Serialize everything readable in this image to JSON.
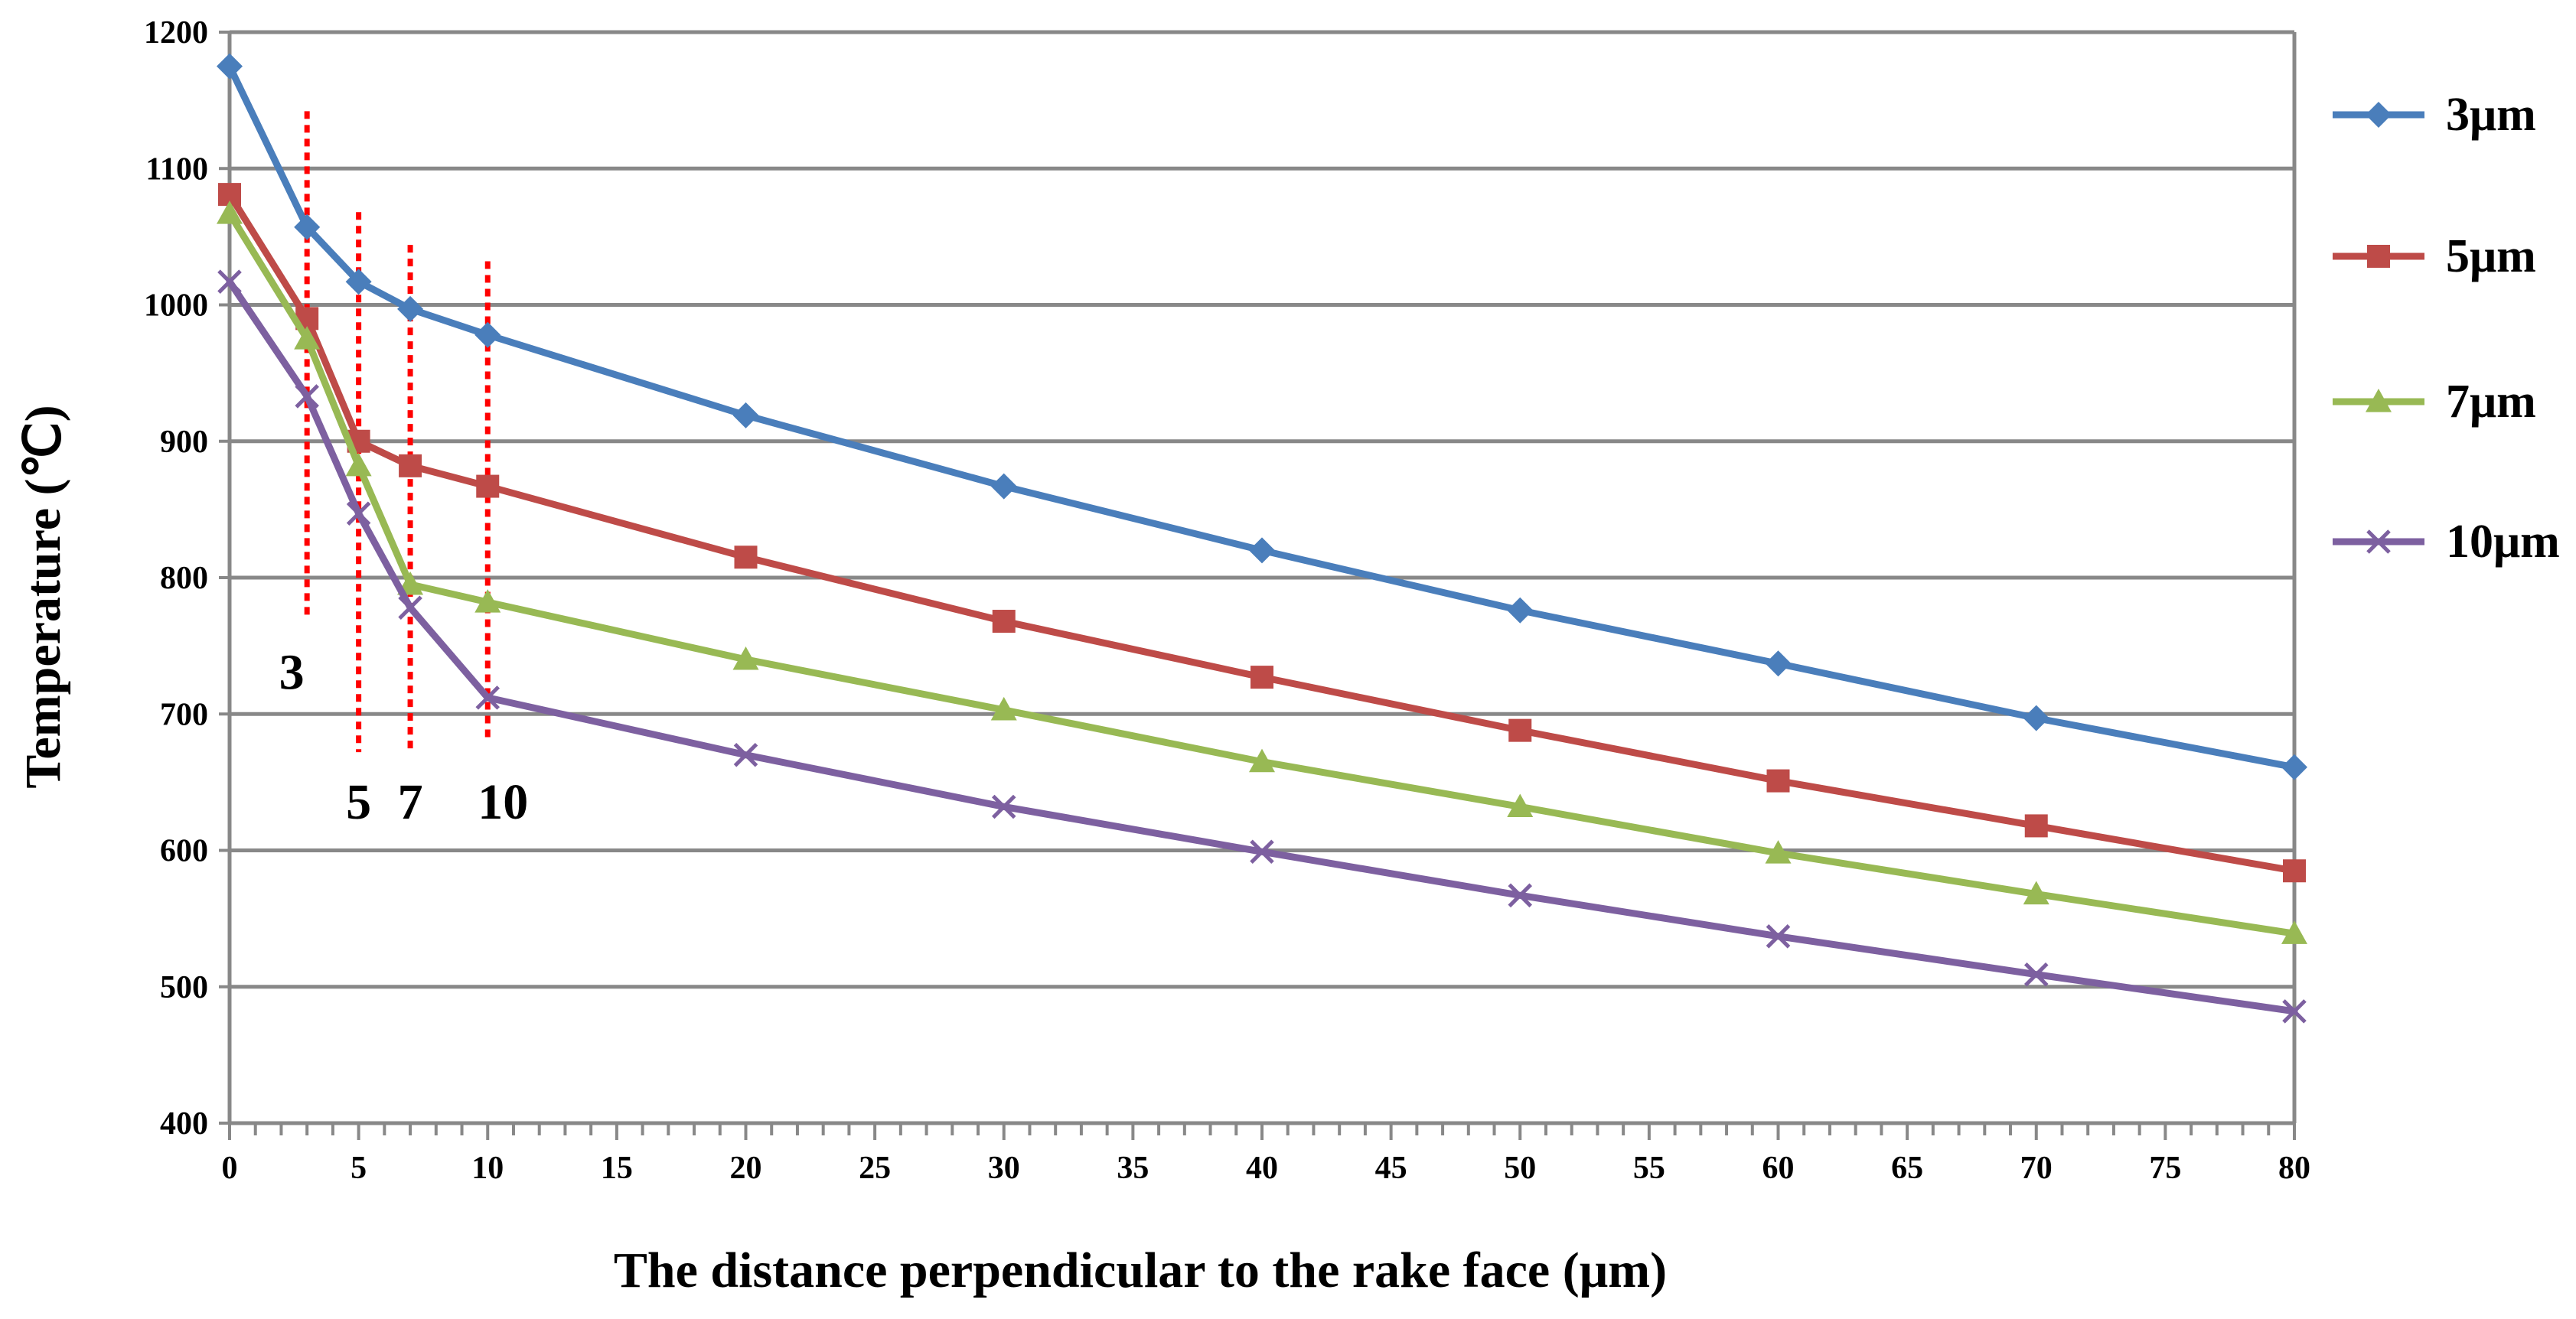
{
  "chart_data": {
    "type": "line",
    "title": "",
    "xlabel": "The distance perpendicular to the rake face (μm)",
    "ylabel": "Temperature (℃)",
    "ylim": [
      400,
      1200
    ],
    "yticks": [
      400,
      500,
      600,
      700,
      800,
      900,
      1000,
      1100,
      1200
    ],
    "x_categories": [
      0,
      3,
      5,
      7,
      10,
      20,
      30,
      40,
      50,
      60,
      70,
      80
    ],
    "xtick_labels": [
      "0",
      "5",
      "10",
      "15",
      "20",
      "25",
      "30",
      "35",
      "40",
      "45",
      "50",
      "55",
      "60",
      "65",
      "70",
      "75",
      "80"
    ],
    "grid": "horizontal",
    "legend_position": "right",
    "series": [
      {
        "name": "3μm",
        "color": "#4a7ebb",
        "marker": "diamond",
        "values": [
          1175,
          1057,
          1017,
          997,
          978,
          919,
          867,
          820,
          776,
          737,
          697,
          661
        ]
      },
      {
        "name": "5μm",
        "color": "#be4b48",
        "marker": "square",
        "values": [
          1081,
          990,
          900,
          882,
          867,
          815,
          768,
          727,
          688,
          651,
          618,
          585
        ]
      },
      {
        "name": "7μm",
        "color": "#98b954",
        "marker": "triangle",
        "values": [
          1067,
          975,
          882,
          795,
          782,
          740,
          703,
          665,
          632,
          598,
          568,
          539
        ]
      },
      {
        "name": "10μm",
        "color": "#7d60a0",
        "marker": "x",
        "values": [
          1017,
          933,
          847,
          778,
          712,
          670,
          632,
          599,
          567,
          537,
          509,
          482
        ]
      }
    ],
    "annotations": [
      {
        "label": "3",
        "x": 3,
        "y_top": 1142,
        "y_bottom": 770
      },
      {
        "label": "5",
        "x": 5,
        "y_top": 1068,
        "y_bottom": 672
      },
      {
        "label": "7",
        "x": 7,
        "y_top": 1044,
        "y_bottom": 672
      },
      {
        "label": "10",
        "x": 10,
        "y_top": 1032,
        "y_bottom": 680
      }
    ],
    "annotation_color": "#ff0000"
  }
}
